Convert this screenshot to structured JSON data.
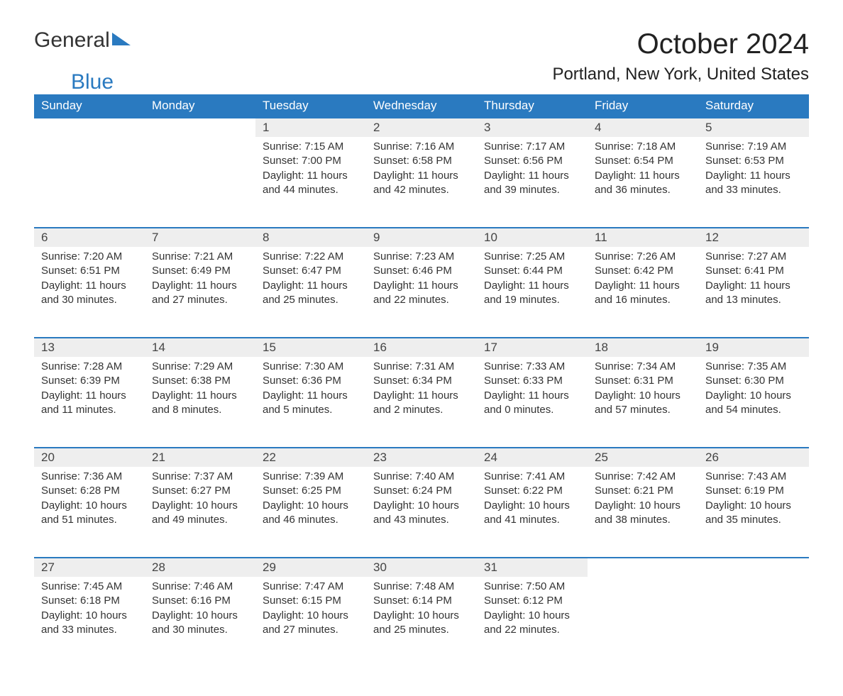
{
  "logo": {
    "word1": "General",
    "word2": "Blue"
  },
  "title": "October 2024",
  "location": "Portland, New York, United States",
  "colors": {
    "header_bg": "#2a7ac0",
    "header_text": "#ffffff",
    "daynum_bg": "#eeeeee",
    "border": "#2a7ac0",
    "body_text": "#333333",
    "page_bg": "#ffffff"
  },
  "day_labels": [
    "Sunday",
    "Monday",
    "Tuesday",
    "Wednesday",
    "Thursday",
    "Friday",
    "Saturday"
  ],
  "weeks": [
    [
      null,
      null,
      {
        "n": "1",
        "sunrise": "7:15 AM",
        "sunset": "7:00 PM",
        "daylight": "11 hours and 44 minutes."
      },
      {
        "n": "2",
        "sunrise": "7:16 AM",
        "sunset": "6:58 PM",
        "daylight": "11 hours and 42 minutes."
      },
      {
        "n": "3",
        "sunrise": "7:17 AM",
        "sunset": "6:56 PM",
        "daylight": "11 hours and 39 minutes."
      },
      {
        "n": "4",
        "sunrise": "7:18 AM",
        "sunset": "6:54 PM",
        "daylight": "11 hours and 36 minutes."
      },
      {
        "n": "5",
        "sunrise": "7:19 AM",
        "sunset": "6:53 PM",
        "daylight": "11 hours and 33 minutes."
      }
    ],
    [
      {
        "n": "6",
        "sunrise": "7:20 AM",
        "sunset": "6:51 PM",
        "daylight": "11 hours and 30 minutes."
      },
      {
        "n": "7",
        "sunrise": "7:21 AM",
        "sunset": "6:49 PM",
        "daylight": "11 hours and 27 minutes."
      },
      {
        "n": "8",
        "sunrise": "7:22 AM",
        "sunset": "6:47 PM",
        "daylight": "11 hours and 25 minutes."
      },
      {
        "n": "9",
        "sunrise": "7:23 AM",
        "sunset": "6:46 PM",
        "daylight": "11 hours and 22 minutes."
      },
      {
        "n": "10",
        "sunrise": "7:25 AM",
        "sunset": "6:44 PM",
        "daylight": "11 hours and 19 minutes."
      },
      {
        "n": "11",
        "sunrise": "7:26 AM",
        "sunset": "6:42 PM",
        "daylight": "11 hours and 16 minutes."
      },
      {
        "n": "12",
        "sunrise": "7:27 AM",
        "sunset": "6:41 PM",
        "daylight": "11 hours and 13 minutes."
      }
    ],
    [
      {
        "n": "13",
        "sunrise": "7:28 AM",
        "sunset": "6:39 PM",
        "daylight": "11 hours and 11 minutes."
      },
      {
        "n": "14",
        "sunrise": "7:29 AM",
        "sunset": "6:38 PM",
        "daylight": "11 hours and 8 minutes."
      },
      {
        "n": "15",
        "sunrise": "7:30 AM",
        "sunset": "6:36 PM",
        "daylight": "11 hours and 5 minutes."
      },
      {
        "n": "16",
        "sunrise": "7:31 AM",
        "sunset": "6:34 PM",
        "daylight": "11 hours and 2 minutes."
      },
      {
        "n": "17",
        "sunrise": "7:33 AM",
        "sunset": "6:33 PM",
        "daylight": "11 hours and 0 minutes."
      },
      {
        "n": "18",
        "sunrise": "7:34 AM",
        "sunset": "6:31 PM",
        "daylight": "10 hours and 57 minutes."
      },
      {
        "n": "19",
        "sunrise": "7:35 AM",
        "sunset": "6:30 PM",
        "daylight": "10 hours and 54 minutes."
      }
    ],
    [
      {
        "n": "20",
        "sunrise": "7:36 AM",
        "sunset": "6:28 PM",
        "daylight": "10 hours and 51 minutes."
      },
      {
        "n": "21",
        "sunrise": "7:37 AM",
        "sunset": "6:27 PM",
        "daylight": "10 hours and 49 minutes."
      },
      {
        "n": "22",
        "sunrise": "7:39 AM",
        "sunset": "6:25 PM",
        "daylight": "10 hours and 46 minutes."
      },
      {
        "n": "23",
        "sunrise": "7:40 AM",
        "sunset": "6:24 PM",
        "daylight": "10 hours and 43 minutes."
      },
      {
        "n": "24",
        "sunrise": "7:41 AM",
        "sunset": "6:22 PM",
        "daylight": "10 hours and 41 minutes."
      },
      {
        "n": "25",
        "sunrise": "7:42 AM",
        "sunset": "6:21 PM",
        "daylight": "10 hours and 38 minutes."
      },
      {
        "n": "26",
        "sunrise": "7:43 AM",
        "sunset": "6:19 PM",
        "daylight": "10 hours and 35 minutes."
      }
    ],
    [
      {
        "n": "27",
        "sunrise": "7:45 AM",
        "sunset": "6:18 PM",
        "daylight": "10 hours and 33 minutes."
      },
      {
        "n": "28",
        "sunrise": "7:46 AM",
        "sunset": "6:16 PM",
        "daylight": "10 hours and 30 minutes."
      },
      {
        "n": "29",
        "sunrise": "7:47 AM",
        "sunset": "6:15 PM",
        "daylight": "10 hours and 27 minutes."
      },
      {
        "n": "30",
        "sunrise": "7:48 AM",
        "sunset": "6:14 PM",
        "daylight": "10 hours and 25 minutes."
      },
      {
        "n": "31",
        "sunrise": "7:50 AM",
        "sunset": "6:12 PM",
        "daylight": "10 hours and 22 minutes."
      },
      null,
      null
    ]
  ],
  "labels": {
    "sunrise": "Sunrise: ",
    "sunset": "Sunset: ",
    "daylight": "Daylight: "
  }
}
